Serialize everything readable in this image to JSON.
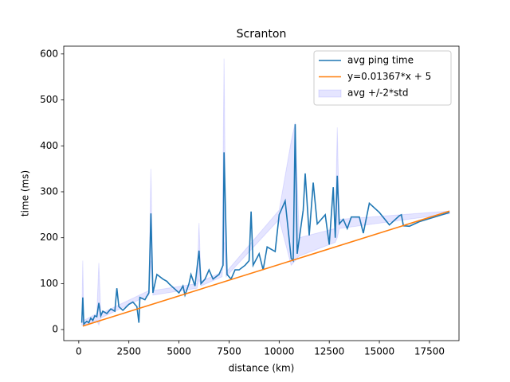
{
  "chart_data": {
    "type": "line",
    "title": "Scranton",
    "x_label": "distance (km)",
    "y_label": "time (ms)",
    "xlim": [
      -750,
      18975
    ],
    "ylim": [
      -24,
      617
    ],
    "xticks": [
      0,
      2500,
      5000,
      7500,
      10000,
      12500,
      15000,
      17500
    ],
    "yticks": [
      0,
      100,
      200,
      300,
      400,
      500,
      600
    ],
    "legend": "upper right",
    "series": [
      {
        "name": "avg ping time",
        "color": "#1f77b4",
        "x": [
          150,
          200,
          250,
          400,
          500,
          600,
          700,
          800,
          900,
          1000,
          1100,
          1200,
          1400,
          1600,
          1800,
          1900,
          2000,
          2200,
          2500,
          2700,
          2900,
          3000,
          3050,
          3300,
          3500,
          3600,
          3700,
          3900,
          4200,
          4400,
          4500,
          5000,
          5200,
          5300,
          5500,
          5600,
          5800,
          6000,
          6100,
          6300,
          6500,
          6700,
          7000,
          7200,
          7250,
          7400,
          7600,
          7800,
          8000,
          8300,
          8500,
          8600,
          8700,
          9000,
          9200,
          9400,
          9800,
          10000,
          10300,
          10600,
          10700,
          10800,
          10900,
          11200,
          11300,
          11500,
          11700,
          11900,
          12100,
          12300,
          12500,
          12700,
          12800,
          12900,
          13000,
          13200,
          13400,
          13600,
          14000,
          14200,
          14500,
          15000,
          15500,
          16000,
          16100,
          16200,
          16500,
          17000,
          18500
        ],
        "values": [
          15,
          70,
          12,
          18,
          15,
          25,
          20,
          30,
          28,
          58,
          30,
          40,
          35,
          45,
          40,
          90,
          50,
          42,
          55,
          60,
          50,
          15,
          70,
          65,
          80,
          253,
          80,
          120,
          110,
          105,
          100,
          80,
          95,
          75,
          100,
          120,
          95,
          172,
          100,
          110,
          130,
          110,
          120,
          140,
          386,
          120,
          110,
          130,
          130,
          140,
          150,
          257,
          140,
          165,
          130,
          180,
          170,
          250,
          280,
          155,
          150,
          447,
          165,
          260,
          340,
          205,
          320,
          230,
          240,
          250,
          185,
          310,
          200,
          335,
          230,
          240,
          220,
          245,
          245,
          210,
          275,
          255,
          228,
          248,
          250,
          226,
          225,
          235,
          255
        ]
      },
      {
        "name": "y=0.01367*x + 5",
        "color": "#ff7f0e",
        "x": [
          200,
          18500
        ],
        "values": [
          7.7,
          257.9
        ]
      },
      {
        "name": "avg +/-2*std",
        "type": "band",
        "color": "#0000ff",
        "x": [
          150,
          200,
          250,
          900,
          1000,
          1100,
          3500,
          3600,
          3700,
          5900,
          6000,
          6100,
          7150,
          7250,
          7350,
          10000,
          10600,
          10800,
          11000,
          12800,
          12900,
          13000,
          18500
        ],
        "upper": [
          20,
          150,
          20,
          35,
          145,
          35,
          85,
          350,
          85,
          100,
          232,
          105,
          125,
          590,
          125,
          260,
          410,
          450,
          200,
          220,
          440,
          240,
          258
        ],
        "lower": [
          10,
          10,
          10,
          20,
          10,
          25,
          75,
          150,
          75,
          90,
          110,
          95,
          115,
          190,
          115,
          240,
          140,
          150,
          160,
          190,
          200,
          220,
          252
        ]
      }
    ]
  }
}
